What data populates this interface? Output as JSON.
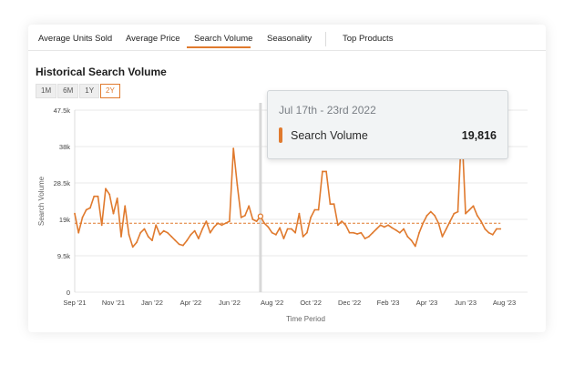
{
  "tabs": [
    {
      "label": "Average Units Sold"
    },
    {
      "label": "Average Price"
    },
    {
      "label": "Search Volume"
    },
    {
      "label": "Seasonality"
    },
    {
      "label": "Top Products"
    }
  ],
  "active_tab": "Search Volume",
  "ranges": [
    {
      "label": "1M"
    },
    {
      "label": "6M"
    },
    {
      "label": "1Y"
    },
    {
      "label": "2Y"
    }
  ],
  "active_range": "2Y",
  "tooltip": {
    "date": "Jul 17th - 23rd 2022",
    "label": "Search Volume",
    "value": "19,816"
  },
  "colors": {
    "accent": "#e07a2e",
    "grid": "#e8e8e8",
    "text": "#333333"
  },
  "chart_data": {
    "type": "line",
    "title": "Historical Search Volume",
    "xlabel": "Time Period",
    "ylabel": "Search Volume",
    "yticks": [
      {
        "v": 0,
        "label": "0"
      },
      {
        "v": 9500,
        "label": "9.5k"
      },
      {
        "v": 19000,
        "label": "19k"
      },
      {
        "v": 28500,
        "label": "28.5k"
      },
      {
        "v": 38000,
        "label": "38k"
      },
      {
        "v": 47500,
        "label": "47.5k"
      }
    ],
    "ylim": [
      0,
      47500
    ],
    "xlim": [
      0,
      117
    ],
    "xticks": [
      {
        "i": 0,
        "label": "Sep '21"
      },
      {
        "i": 10,
        "label": "Nov '21"
      },
      {
        "i": 20,
        "label": "Jan '22"
      },
      {
        "i": 30,
        "label": "Apr '22"
      },
      {
        "i": 40,
        "label": "Jun '22"
      },
      {
        "i": 51,
        "label": "Aug '22"
      },
      {
        "i": 61,
        "label": "Oct '22"
      },
      {
        "i": 71,
        "label": "Dec '22"
      },
      {
        "i": 81,
        "label": "Feb '23"
      },
      {
        "i": 91,
        "label": "Apr '23"
      },
      {
        "i": 101,
        "label": "Jun '23"
      },
      {
        "i": 111,
        "label": "Aug '23"
      }
    ],
    "average": 18000,
    "highlight_index": 48,
    "grid": true,
    "series": [
      {
        "values": [
          20500,
          15500,
          19500,
          21500,
          22000,
          25000,
          25000,
          17500,
          27000,
          25500,
          20500,
          24500,
          14500,
          22500,
          15000,
          11800,
          13000,
          15500,
          16500,
          14500,
          13500,
          17500,
          15000,
          16000,
          15500,
          14500,
          13500,
          12500,
          12200,
          13500,
          15000,
          16000,
          14000,
          16500,
          18500,
          15500,
          17000,
          18000,
          17500,
          18000,
          18500,
          37500,
          28000,
          19500,
          20000,
          22500,
          19000,
          18500,
          19800,
          18000,
          17000,
          15500,
          15000,
          16800,
          14000,
          16500,
          16500,
          15500,
          20500,
          14500,
          15500,
          19500,
          21500,
          21500,
          31500,
          31500,
          23000,
          23000,
          17500,
          18500,
          17500,
          15500,
          15500,
          15200,
          15500,
          14000,
          14500,
          15500,
          16500,
          17500,
          17000,
          17500,
          16800,
          16200,
          15500,
          16500,
          14500,
          13500,
          12000,
          15500,
          18000,
          20000,
          21000,
          20000,
          18000,
          14500,
          16500,
          18500,
          20500,
          21000,
          43000,
          20500,
          21500,
          22500,
          20000,
          18500,
          16500,
          15500,
          15000,
          16500,
          16500,
          null,
          null,
          null,
          null,
          null,
          null,
          null
        ]
      }
    ]
  }
}
